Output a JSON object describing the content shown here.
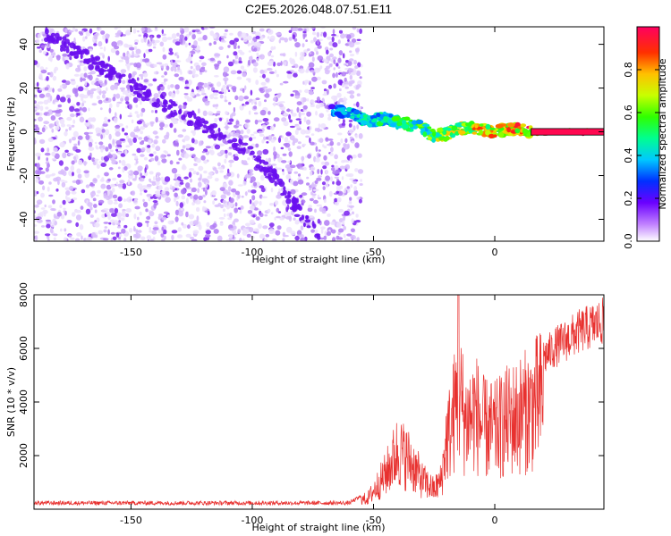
{
  "title": "C2E5.2026.048.07.51.E11",
  "colors": {
    "snr_line": "#e8312f",
    "scatter_base": "#8a2be2",
    "axis": "#000000"
  },
  "chart_data": [
    {
      "type": "heatmap",
      "title": "C2E5.2026.048.07.51.E11",
      "xlabel": "Height of straight line (km)",
      "ylabel": "Frequency (Hz)",
      "xlim": [
        -190,
        45
      ],
      "ylim": [
        -50,
        48
      ],
      "x_ticks": [
        -150,
        -100,
        -50,
        0
      ],
      "y_ticks": [
        -40,
        -20,
        0,
        20,
        40
      ],
      "colorbar": {
        "label": "Normalized spectral amplitude",
        "range": [
          0,
          1
        ],
        "ticks": [
          "0.0",
          "0.2",
          "0.4",
          "0.6",
          "0.8"
        ],
        "tick_values": [
          0.0,
          0.2,
          0.4,
          0.6,
          0.8
        ]
      },
      "noise_region": {
        "x_range": [
          -190,
          -55
        ],
        "y_range": [
          -50,
          48
        ],
        "amplitude_range": [
          0.0,
          0.15
        ]
      },
      "diagonal_trace": [
        {
          "x": -185,
          "y": 45
        },
        {
          "x": -160,
          "y": 28
        },
        {
          "x": -140,
          "y": 15
        },
        {
          "x": -120,
          "y": 3
        },
        {
          "x": -100,
          "y": -10
        },
        {
          "x": -90,
          "y": -22
        },
        {
          "x": -80,
          "y": -38
        },
        {
          "x": -72,
          "y": -48
        }
      ],
      "signal_trace": [
        {
          "x": -68,
          "y": 11,
          "amp": 0.35
        },
        {
          "x": -60,
          "y": 8,
          "amp": 0.45
        },
        {
          "x": -52,
          "y": 5,
          "amp": 0.5
        },
        {
          "x": -45,
          "y": 6,
          "amp": 0.55
        },
        {
          "x": -38,
          "y": 4,
          "amp": 0.6
        },
        {
          "x": -30,
          "y": 2,
          "amp": 0.6
        },
        {
          "x": -25,
          "y": -2,
          "amp": 0.7
        },
        {
          "x": -20,
          "y": -1,
          "amp": 0.75
        },
        {
          "x": -15,
          "y": 1,
          "amp": 0.8
        },
        {
          "x": -10,
          "y": 2,
          "amp": 0.85
        },
        {
          "x": -5,
          "y": 1,
          "amp": 0.85
        },
        {
          "x": 0,
          "y": 0,
          "amp": 0.9
        },
        {
          "x": 5,
          "y": 1,
          "amp": 0.9
        },
        {
          "x": 10,
          "y": 1,
          "amp": 0.95
        },
        {
          "x": 15,
          "y": 0,
          "amp": 0.97
        },
        {
          "x": 25,
          "y": 0,
          "amp": 0.98
        },
        {
          "x": 45,
          "y": 0,
          "amp": 0.98
        }
      ]
    },
    {
      "type": "line",
      "xlabel": "Height of straight line (km)",
      "ylabel": "SNR (10 * v/v)",
      "xlim": [
        -190,
        45
      ],
      "ylim": [
        0,
        8000
      ],
      "x_ticks": [
        -150,
        -100,
        -50,
        0
      ],
      "y_ticks": [
        2000,
        4000,
        6000,
        8000
      ],
      "envelope": [
        {
          "x": -190,
          "y": 200
        },
        {
          "x": -150,
          "y": 200
        },
        {
          "x": -100,
          "y": 200
        },
        {
          "x": -60,
          "y": 200
        },
        {
          "x": -52,
          "y": 600
        },
        {
          "x": -45,
          "y": 1800
        },
        {
          "x": -40,
          "y": 3000
        },
        {
          "x": -35,
          "y": 2500
        },
        {
          "x": -30,
          "y": 1500
        },
        {
          "x": -25,
          "y": 1000
        },
        {
          "x": -22,
          "y": 1500
        },
        {
          "x": -20,
          "y": 3500
        },
        {
          "x": -18,
          "y": 4200
        },
        {
          "x": -15,
          "y": 6000
        },
        {
          "x": -12,
          "y": 4500
        },
        {
          "x": -8,
          "y": 5000
        },
        {
          "x": -5,
          "y": 4200
        },
        {
          "x": 0,
          "y": 4000
        },
        {
          "x": 5,
          "y": 4500
        },
        {
          "x": 10,
          "y": 4800
        },
        {
          "x": 15,
          "y": 5200
        },
        {
          "x": 20,
          "y": 5800
        },
        {
          "x": 25,
          "y": 6200
        },
        {
          "x": 30,
          "y": 6500
        },
        {
          "x": 35,
          "y": 6800
        },
        {
          "x": 40,
          "y": 7000
        },
        {
          "x": 45,
          "y": 7200
        }
      ]
    }
  ]
}
